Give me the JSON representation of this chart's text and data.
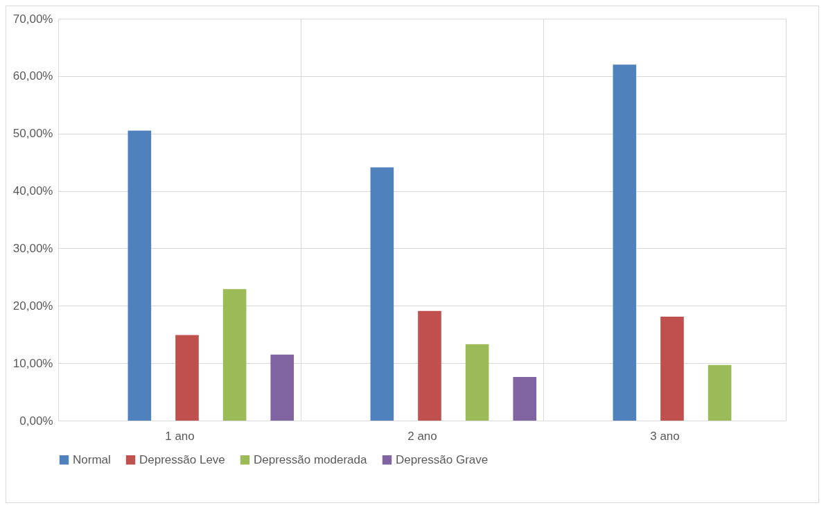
{
  "chart_data": {
    "type": "bar",
    "categories": [
      "1 ano",
      "2 ano",
      "3 ano"
    ],
    "series": [
      {
        "name": "Normal",
        "color": "#4f81bd",
        "values": [
          50.5,
          44.1,
          62.0
        ]
      },
      {
        "name": "Depressão Leve",
        "color": "#c0504d",
        "values": [
          14.9,
          19.1,
          18.1
        ]
      },
      {
        "name": "Depressão moderada",
        "color": "#9bbb59",
        "values": [
          22.9,
          13.3,
          9.7
        ]
      },
      {
        "name": "Depressão Grave",
        "color": "#8064a2",
        "values": [
          11.5,
          7.6,
          null
        ]
      }
    ],
    "ylim": [
      0,
      70
    ],
    "yticks": [
      {
        "value": 0,
        "label": "0,00%"
      },
      {
        "value": 10,
        "label": "10,00%"
      },
      {
        "value": 20,
        "label": "20,00%"
      },
      {
        "value": 30,
        "label": "30,00%"
      },
      {
        "value": 40,
        "label": "40,00%"
      },
      {
        "value": 50,
        "label": "50,00%"
      },
      {
        "value": 60,
        "label": "60,00%"
      },
      {
        "value": 70,
        "label": "70,00%"
      }
    ],
    "grid": true,
    "legend": "bottom"
  }
}
